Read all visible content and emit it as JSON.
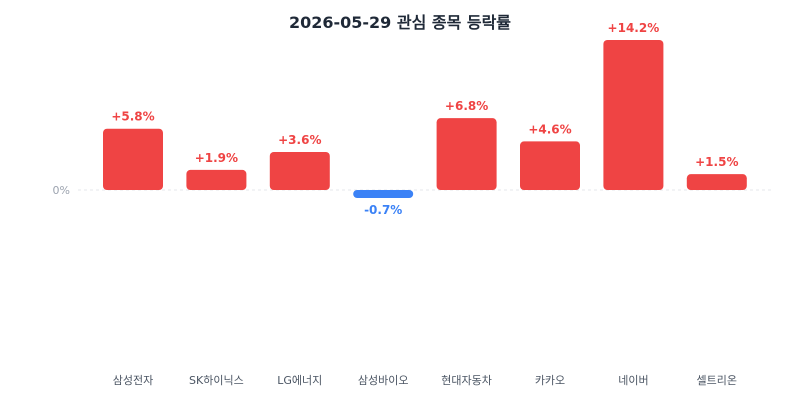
{
  "chart_data": {
    "type": "bar",
    "title": "2026-05-29 관심 종목 등락률",
    "zero_label": "0%",
    "categories": [
      "삼성전자",
      "SK하이닉스",
      "LG에너지",
      "삼성바이오",
      "현대자동차",
      "카카오",
      "네이버",
      "셀트리온"
    ],
    "values": [
      5.8,
      1.9,
      3.6,
      -0.7,
      6.8,
      4.6,
      14.2,
      1.5
    ],
    "value_labels": [
      "+5.8%",
      "+1.9%",
      "+3.6%",
      "-0.7%",
      "+6.8%",
      "+4.6%",
      "+14.2%",
      "+1.5%"
    ],
    "xlabel": "",
    "ylabel": "",
    "grid": false,
    "colors": {
      "positive": "#ef4444",
      "negative": "#3b82f6",
      "zero_line": "#e5e7eb",
      "title": "#1f2937"
    }
  }
}
